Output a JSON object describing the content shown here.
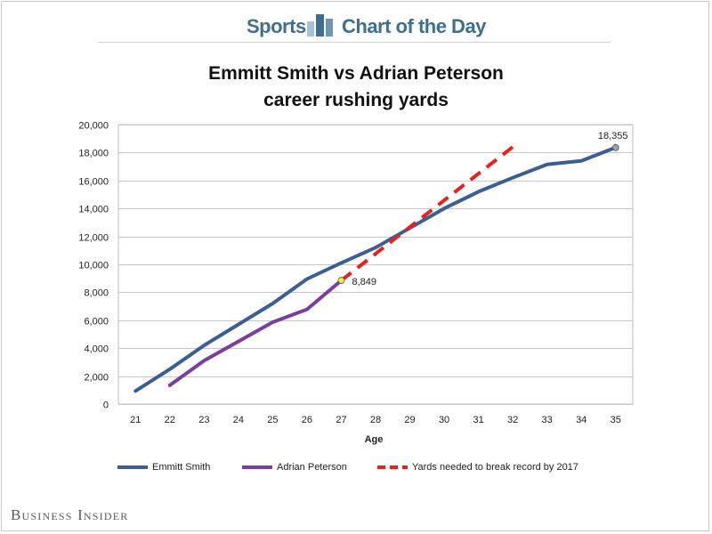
{
  "header": {
    "left_label": "Sports",
    "right_label": "Chart of the Day",
    "icon": "bar-chart-icon",
    "color": "#3f6f90"
  },
  "brand": "Business Insider",
  "chart_data": {
    "type": "line",
    "title_line1": "Emmitt Smith vs Adrian Peterson",
    "title_line2": "career rushing yards",
    "xlabel": "Age",
    "ylabel": "",
    "categories": [
      21,
      22,
      23,
      24,
      25,
      26,
      27,
      28,
      29,
      30,
      31,
      32,
      33,
      34,
      35
    ],
    "ylim": [
      0,
      20000
    ],
    "yticks": [
      0,
      2000,
      4000,
      6000,
      8000,
      10000,
      12000,
      14000,
      16000,
      18000,
      20000
    ],
    "ytick_labels": [
      "0",
      "2,000",
      "4,000",
      "6,000",
      "8,000",
      "10,000",
      "12,000",
      "14,000",
      "16,000",
      "18,000",
      "20,000"
    ],
    "grid": true,
    "legend_position": "bottom",
    "series": [
      {
        "name": "Emmitt Smith",
        "color": "#3b5e94",
        "style": "solid",
        "x": [
          21,
          22,
          23,
          24,
          25,
          26,
          27,
          28,
          29,
          30,
          31,
          32,
          33,
          34,
          35
        ],
        "values": [
          937,
          2500,
          4200,
          5700,
          7200,
          8950,
          10100,
          11200,
          12600,
          14000,
          15200,
          16200,
          17150,
          17400,
          18355
        ]
      },
      {
        "name": "Adrian Peterson",
        "color": "#7a3ea0",
        "style": "solid",
        "x": [
          22,
          23,
          24,
          25,
          26,
          27
        ],
        "values": [
          1341,
          3101,
          4484,
          5860,
          6778,
          8849
        ]
      },
      {
        "name": "Yards needed to break record by 2017",
        "color": "#e8211d",
        "style": "dashed",
        "x": [
          27,
          32
        ],
        "values": [
          8849,
          18400
        ]
      }
    ],
    "annotations": [
      {
        "text": "18,355",
        "x": 35,
        "y": 18355,
        "marker_color": "#8fa4c0"
      },
      {
        "text": "8,849",
        "x": 27,
        "y": 8849,
        "marker_color": "#f2ee3a"
      }
    ]
  }
}
